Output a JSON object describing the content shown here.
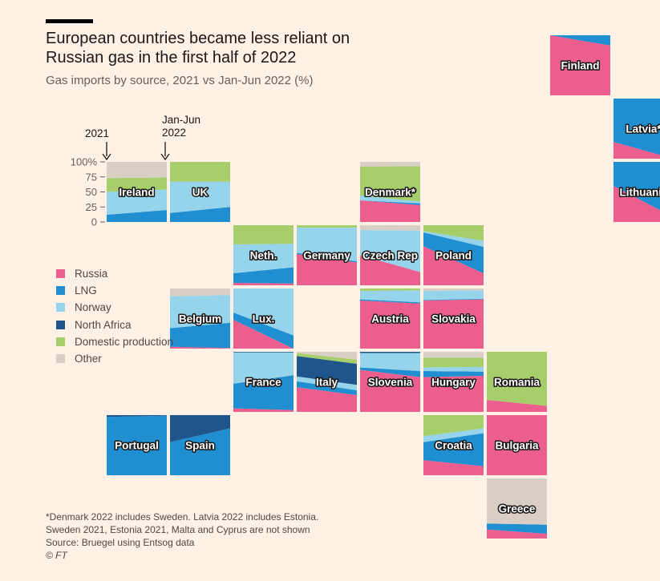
{
  "title": "European countries became less reliant on Russian gas in the first half of 2022",
  "subtitle": "Gas imports by source, 2021 vs Jan-Jun 2022 (%)",
  "annotations": {
    "label_2021": "2021",
    "label_2022_line1": "Jan-Jun",
    "label_2022_line2": "2022"
  },
  "legend": [
    {
      "key": "russia",
      "label": "Russia",
      "color": "#eb5e8d"
    },
    {
      "key": "lng",
      "label": "LNG",
      "color": "#1f8fd1"
    },
    {
      "key": "norway",
      "label": "Norway",
      "color": "#96d4ec"
    },
    {
      "key": "north_africa",
      "label": "North Africa",
      "color": "#1e558c"
    },
    {
      "key": "domestic",
      "label": "Domestic production",
      "color": "#a6ce6b"
    },
    {
      "key": "other",
      "label": "Other",
      "color": "#d9cfc5"
    }
  ],
  "footnotes": {
    "line1": "*Denmark 2022 includes Sweden. Latvia 2022 includes Estonia.",
    "line2": "Sweden 2021, Estonia 2021, Malta and Cyprus are not shown",
    "source": "Source:  Bruegel using Entsog data",
    "credit": "© FT"
  },
  "chart_data": {
    "type": "area",
    "layout": "tile-grid map of small multiples",
    "x": [
      "2021",
      "Jan-Jun 2022"
    ],
    "y_unit": "%",
    "ylim": [
      0,
      100
    ],
    "yticks": [
      "0",
      "25",
      "50",
      "75",
      "100%"
    ],
    "sources": [
      "russia",
      "lng",
      "norway",
      "north_africa",
      "domestic",
      "other"
    ],
    "countries": [
      {
        "name": "Finland",
        "row": 0,
        "col": 7,
        "y2021": {
          "russia": 100
        },
        "y2022": {
          "russia": 83,
          "lng": 17
        }
      },
      {
        "name": "Latvia*",
        "row": 1,
        "col": 8,
        "y2021": {
          "russia": 28,
          "lng": 72
        },
        "y2022": {
          "russia": 0,
          "lng": 100
        }
      },
      {
        "name": "Ireland",
        "row": 2,
        "col": 0,
        "y2021": {
          "lng": 12,
          "norway": 38,
          "domestic": 23,
          "other": 27
        },
        "y2022": {
          "lng": 20,
          "norway": 34,
          "domestic": 20,
          "other": 26
        }
      },
      {
        "name": "UK",
        "row": 2,
        "col": 1,
        "y2021": {
          "lng": 15,
          "norway": 52,
          "domestic": 33
        },
        "y2022": {
          "lng": 25,
          "norway": 42,
          "domestic": 33
        }
      },
      {
        "name": "Denmark*",
        "row": 2,
        "col": 4,
        "y2021": {
          "russia": 36,
          "norway": 8,
          "domestic": 48,
          "other": 8
        },
        "y2022": {
          "russia": 28,
          "lng": 3,
          "norway": 3,
          "domestic": 59,
          "other": 7
        }
      },
      {
        "name": "Lithuania",
        "row": 2,
        "col": 8,
        "y2021": {
          "russia": 60,
          "lng": 40
        },
        "y2022": {
          "russia": 8,
          "lng": 92
        }
      },
      {
        "name": "Neth.",
        "row": 3,
        "col": 2,
        "y2021": {
          "russia": 4,
          "lng": 16,
          "norway": 48,
          "domestic": 32
        },
        "y2022": {
          "russia": 3,
          "lng": 27,
          "norway": 39,
          "domestic": 31
        }
      },
      {
        "name": "Germany",
        "row": 3,
        "col": 3,
        "y2021": {
          "russia": 52,
          "lng": 2,
          "norway": 42,
          "domestic": 4
        },
        "y2022": {
          "russia": 38,
          "lng": 2,
          "norway": 56,
          "domestic": 4
        }
      },
      {
        "name": "Czech Rep",
        "row": 3,
        "col": 4,
        "y2021": {
          "russia": 50,
          "norway": 42,
          "other": 8
        },
        "y2022": {
          "russia": 22,
          "norway": 69,
          "other": 9
        }
      },
      {
        "name": "Poland",
        "row": 3,
        "col": 5,
        "y2021": {
          "russia": 65,
          "lng": 23,
          "norway": 2,
          "domestic": 10
        },
        "y2022": {
          "russia": 20,
          "lng": 44,
          "norway": 10,
          "domestic": 26
        }
      },
      {
        "name": "Belgium",
        "row": 4,
        "col": 1,
        "y2021": {
          "russia": 3,
          "lng": 31,
          "norway": 53,
          "other": 13
        },
        "y2022": {
          "russia": 1,
          "lng": 42,
          "norway": 46,
          "other": 11
        }
      },
      {
        "name": "Lux.",
        "row": 4,
        "col": 2,
        "y2021": {
          "russia": 48,
          "lng": 12,
          "norway": 40
        },
        "y2022": {
          "russia": 0,
          "lng": 22,
          "norway": 78
        }
      },
      {
        "name": "Austria",
        "row": 4,
        "col": 4,
        "y2021": {
          "russia": 80,
          "lng": 2,
          "norway": 14,
          "domestic": 4
        },
        "y2022": {
          "russia": 75,
          "lng": 2,
          "norway": 20,
          "domestic": 3
        }
      },
      {
        "name": "Slovakia",
        "row": 4,
        "col": 5,
        "y2021": {
          "russia": 80,
          "lng": 1,
          "norway": 15,
          "other": 4
        },
        "y2022": {
          "russia": 82,
          "lng": 1,
          "norway": 14,
          "other": 3
        }
      },
      {
        "name": "France",
        "row": 5,
        "col": 2,
        "y2021": {
          "russia": 6,
          "lng": 41,
          "norway": 52,
          "north_africa": 1
        },
        "y2022": {
          "russia": 3,
          "lng": 58,
          "norway": 38,
          "north_africa": 1
        }
      },
      {
        "name": "Italy",
        "row": 5,
        "col": 3,
        "y2021": {
          "russia": 41,
          "lng": 10,
          "norway": 8,
          "north_africa": 34,
          "domestic": 5,
          "other": 2
        },
        "y2022": {
          "russia": 28,
          "lng": 8,
          "norway": 9,
          "north_africa": 35,
          "domestic": 7,
          "other": 13
        }
      },
      {
        "name": "Slovenia",
        "row": 5,
        "col": 4,
        "y2021": {
          "russia": 70,
          "lng": 4,
          "norway": 24,
          "north_africa": 2
        },
        "y2022": {
          "russia": 58,
          "lng": 10,
          "norway": 30,
          "north_africa": 2
        }
      },
      {
        "name": "Hungary",
        "row": 5,
        "col": 5,
        "y2021": {
          "russia": 58,
          "lng": 10,
          "norway": 6,
          "domestic": 16,
          "other": 10
        },
        "y2022": {
          "russia": 60,
          "lng": 7,
          "norway": 8,
          "domestic": 15,
          "other": 10
        }
      },
      {
        "name": "Romania",
        "row": 5,
        "col": 6,
        "y2021": {
          "russia": 20,
          "domestic": 80
        },
        "y2022": {
          "russia": 10,
          "domestic": 90
        }
      },
      {
        "name": "Portugal",
        "row": 6,
        "col": 0,
        "y2021": {
          "lng": 97,
          "north_africa": 3
        },
        "y2022": {
          "lng": 99,
          "north_africa": 1
        }
      },
      {
        "name": "Spain",
        "row": 6,
        "col": 1,
        "y2021": {
          "lng": 55,
          "north_africa": 45
        },
        "y2022": {
          "lng": 78,
          "north_africa": 22
        }
      },
      {
        "name": "Croatia",
        "row": 6,
        "col": 5,
        "y2021": {
          "russia": 25,
          "lng": 30,
          "norway": 10,
          "domestic": 35
        },
        "y2022": {
          "russia": 15,
          "lng": 55,
          "norway": 8,
          "domestic": 22
        }
      },
      {
        "name": "Bulgaria",
        "row": 6,
        "col": 6,
        "y2021": {
          "russia": 100
        },
        "y2022": {
          "russia": 100
        }
      },
      {
        "name": "Greece",
        "row": 7,
        "col": 6,
        "y2021": {
          "russia": 15,
          "lng": 10,
          "other": 75
        },
        "y2022": {
          "russia": 8,
          "lng": 15,
          "other": 77
        }
      }
    ]
  }
}
